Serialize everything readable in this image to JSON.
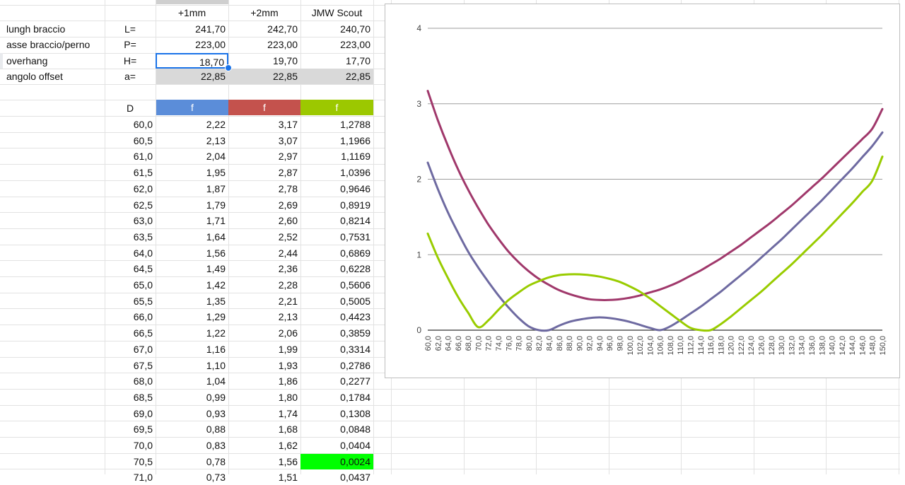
{
  "columns": {
    "col1": "+1mm",
    "col2": "+2mm",
    "col3": "JMW Scout"
  },
  "params": [
    {
      "label": "lungh braccio",
      "symbol": "L=",
      "values": [
        "241,70",
        "242,70",
        "240,70"
      ]
    },
    {
      "label": "asse braccio/perno",
      "symbol": "P=",
      "values": [
        "223,00",
        "223,00",
        "223,00"
      ]
    },
    {
      "label": "overhang",
      "symbol": "H=",
      "values": [
        "18,70",
        "19,70",
        "17,70"
      ]
    },
    {
      "label": "angolo offset",
      "symbol": "a=",
      "values": [
        "22,85",
        "22,85",
        "22,85"
      ]
    }
  ],
  "table": {
    "d_header": "D",
    "f_headers": [
      "f",
      "f",
      "f"
    ],
    "header_colors": [
      "#5b8dd9",
      "#c4524d",
      "#9cc800"
    ],
    "rows": [
      [
        "60,0",
        "2,22",
        "3,17",
        "1,2788"
      ],
      [
        "60,5",
        "2,13",
        "3,07",
        "1,1966"
      ],
      [
        "61,0",
        "2,04",
        "2,97",
        "1,1169"
      ],
      [
        "61,5",
        "1,95",
        "2,87",
        "1,0396"
      ],
      [
        "62,0",
        "1,87",
        "2,78",
        "0,9646"
      ],
      [
        "62,5",
        "1,79",
        "2,69",
        "0,8919"
      ],
      [
        "63,0",
        "1,71",
        "2,60",
        "0,8214"
      ],
      [
        "63,5",
        "1,64",
        "2,52",
        "0,7531"
      ],
      [
        "64,0",
        "1,56",
        "2,44",
        "0,6869"
      ],
      [
        "64,5",
        "1,49",
        "2,36",
        "0,6228"
      ],
      [
        "65,0",
        "1,42",
        "2,28",
        "0,5606"
      ],
      [
        "65,5",
        "1,35",
        "2,21",
        "0,5005"
      ],
      [
        "66,0",
        "1,29",
        "2,13",
        "0,4423"
      ],
      [
        "66,5",
        "1,22",
        "2,06",
        "0,3859"
      ],
      [
        "67,0",
        "1,16",
        "1,99",
        "0,3314"
      ],
      [
        "67,5",
        "1,10",
        "1,93",
        "0,2786"
      ],
      [
        "68,0",
        "1,04",
        "1,86",
        "0,2277"
      ],
      [
        "68,5",
        "0,99",
        "1,80",
        "0,1784"
      ],
      [
        "69,0",
        "0,93",
        "1,74",
        "0,1308"
      ],
      [
        "69,5",
        "0,88",
        "1,68",
        "0,0848"
      ],
      [
        "70,0",
        "0,83",
        "1,62",
        "0,0404"
      ],
      [
        "70,5",
        "0,78",
        "1,56",
        "0,0024"
      ],
      [
        "71,0",
        "0,73",
        "1,51",
        "0,0437"
      ]
    ],
    "highlight_row": 21,
    "highlight_color": "#00ff00"
  },
  "selection_color": "#1a73e8",
  "chart_data": {
    "type": "line",
    "x": [
      60,
      62,
      64,
      66,
      68,
      70,
      72,
      74,
      76,
      78,
      80,
      82,
      84,
      86,
      88,
      90,
      92,
      94,
      96,
      98,
      100,
      102,
      104,
      106,
      108,
      110,
      112,
      114,
      116,
      118,
      120,
      122,
      124,
      126,
      128,
      130,
      132,
      134,
      136,
      138,
      140,
      142,
      144,
      146,
      148,
      150
    ],
    "x_tick_labels": [
      "60,0",
      "62,0",
      "64,0",
      "66,0",
      "68,0",
      "70,0",
      "72,0",
      "74,0",
      "76,0",
      "78,0",
      "80,0",
      "82,0",
      "84,0",
      "86,0",
      "88,0",
      "90,0",
      "92,0",
      "94,0",
      "96,0",
      "98,0",
      "100,0",
      "102,0",
      "104,0",
      "106,0",
      "108,0",
      "110,0",
      "112,0",
      "114,0",
      "116,0",
      "118,0",
      "120,0",
      "122,0",
      "124,0",
      "126,0",
      "128,0",
      "130,0",
      "132,0",
      "134,0",
      "136,0",
      "138,0",
      "140,0",
      "142,0",
      "144,0",
      "146,0",
      "148,0",
      "150,0"
    ],
    "series": [
      {
        "color": "#6e6aa1",
        "values": [
          2.22,
          1.87,
          1.56,
          1.29,
          1.04,
          0.83,
          0.64,
          0.46,
          0.3,
          0.16,
          0.05,
          0.0,
          0.0,
          0.06,
          0.11,
          0.14,
          0.16,
          0.17,
          0.16,
          0.14,
          0.11,
          0.07,
          0.03,
          0.0,
          0.05,
          0.13,
          0.22,
          0.31,
          0.41,
          0.51,
          0.62,
          0.73,
          0.84,
          0.96,
          1.08,
          1.2,
          1.33,
          1.46,
          1.59,
          1.72,
          1.86,
          2.0,
          2.14,
          2.29,
          2.44,
          2.62
        ]
      },
      {
        "color": "#a0386b",
        "values": [
          3.17,
          2.78,
          2.44,
          2.13,
          1.86,
          1.62,
          1.4,
          1.21,
          1.04,
          0.9,
          0.78,
          0.68,
          0.6,
          0.53,
          0.48,
          0.44,
          0.41,
          0.4,
          0.4,
          0.41,
          0.43,
          0.46,
          0.5,
          0.54,
          0.59,
          0.65,
          0.72,
          0.79,
          0.87,
          0.95,
          1.04,
          1.13,
          1.23,
          1.33,
          1.43,
          1.54,
          1.65,
          1.77,
          1.89,
          2.01,
          2.14,
          2.27,
          2.4,
          2.53,
          2.67,
          2.93
        ]
      },
      {
        "color": "#99cc00",
        "values": [
          1.28,
          0.96,
          0.69,
          0.44,
          0.23,
          0.04,
          0.13,
          0.27,
          0.4,
          0.5,
          0.59,
          0.65,
          0.7,
          0.73,
          0.74,
          0.74,
          0.73,
          0.71,
          0.68,
          0.64,
          0.58,
          0.51,
          0.42,
          0.32,
          0.22,
          0.12,
          0.03,
          0.0,
          0.0,
          0.08,
          0.18,
          0.29,
          0.4,
          0.51,
          0.63,
          0.75,
          0.87,
          1.0,
          1.13,
          1.26,
          1.4,
          1.54,
          1.68,
          1.83,
          1.98,
          2.3
        ]
      }
    ],
    "y_tick_labels": [
      "0",
      "1",
      "2",
      "3",
      "4"
    ],
    "ylim": [
      0,
      4
    ],
    "grid": true,
    "legend": "none"
  }
}
